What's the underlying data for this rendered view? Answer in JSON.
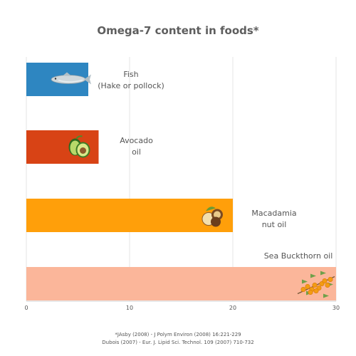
{
  "chart_data": {
    "type": "bar",
    "orientation": "horizontal",
    "title": "Omega-7 content in foods*",
    "categories": [
      "Fish (Hake or pollock)",
      "Avocado oil",
      "Macadamia nut oil",
      "Sea Buckthorn oil"
    ],
    "label_lines": [
      [
        "Fish",
        "(Hake or pollock)"
      ],
      [
        "Avocado",
        "oil"
      ],
      [
        "Macadamia",
        "nut oil"
      ],
      [
        "Sea Buckthorn oil"
      ]
    ],
    "values": [
      6,
      7,
      20,
      30
    ],
    "colors": [
      "#2e86c1",
      "#d84315",
      "#ff9f0a",
      "#fbb69a"
    ],
    "icons": [
      "fish-icon",
      "avocado-icon",
      "macadamia-icon",
      "sea-buckthorn-icon"
    ],
    "xlim": [
      0,
      30
    ],
    "xticks": [
      "0",
      "10",
      "20",
      "30"
    ],
    "grid": true,
    "xlabel": "",
    "ylabel": ""
  },
  "footnotes": [
    "*JAsby (2008) - J Polym Environ (2008) 16:221-229",
    "Dubois (2007) - Eur. J. Lipid Sci. Technol. 109 (2007) 710-732"
  ]
}
